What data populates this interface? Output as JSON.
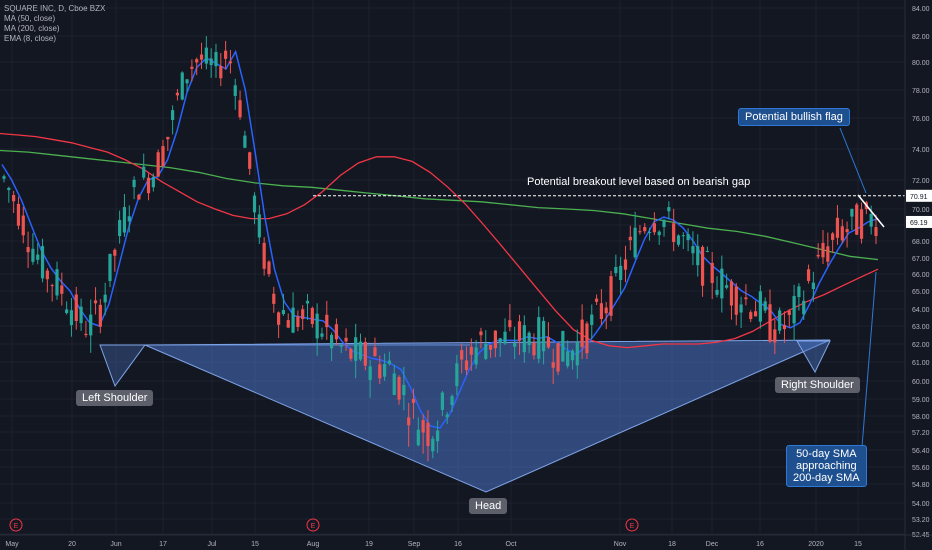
{
  "legend": {
    "symbol": "SQUARE INC, D, Cboe BZX",
    "ma50": "MA (50, close)",
    "ma200": "MA (200, close)",
    "ema8": "EMA (8, close)"
  },
  "annotations": {
    "breakout": "Potential breakout level based on bearish gap",
    "flag": "Potential bullish flag",
    "left_shoulder": "Left Shoulder",
    "head": "Head",
    "right_shoulder": "Right Shoulder",
    "sma_line1": "50-day SMA",
    "sma_line2": "approaching",
    "sma_line3": "200-day SMA"
  },
  "colors": {
    "background": "#131722",
    "up": "#26a69a",
    "down": "#ef5350",
    "ma50": "#f23645",
    "ma200": "#4caf50",
    "ema8": "#2962ff",
    "pattern_fill": "#4a73c2",
    "breakout_line": "#ffffff"
  },
  "chart_data": {
    "type": "candlestick",
    "y_ticks": [
      "84.00",
      "82.00",
      "80.00",
      "78.00",
      "76.00",
      "74.00",
      "72.00",
      "70.00",
      "69.00",
      "68.00",
      "67.00",
      "66.00",
      "65.00",
      "64.00",
      "63.00",
      "62.00",
      "61.00",
      "60.00",
      "59.00",
      "58.00",
      "57.20",
      "56.40",
      "55.60",
      "54.80",
      "54.00",
      "53.20",
      "52.45"
    ],
    "x_ticks": [
      "May",
      "20",
      "Jun",
      "17",
      "Jul",
      "15",
      "Aug",
      "19",
      "Sep",
      "16",
      "Oct",
      "Nov",
      "18",
      "Dec",
      "16",
      "2020",
      "15"
    ],
    "price_labels": [
      "70.91",
      "69.19"
    ],
    "breakout_level": 70.91,
    "last_price": 69.19,
    "earnings_markers": [
      "E",
      "E",
      "E"
    ],
    "ohlc_count": 182,
    "ma50": [
      75.0,
      74.9,
      74.8,
      74.6,
      74.4,
      74.1,
      73.8,
      73.3,
      72.7,
      71.9,
      71.2,
      70.5,
      70.0,
      69.6,
      69.4,
      69.4,
      69.7,
      70.3,
      71.2,
      72.3,
      73.1,
      73.5,
      73.5,
      73.2,
      72.5,
      71.5,
      70.3,
      69.0,
      67.7,
      66.4,
      65.1,
      63.9,
      62.8,
      62.2,
      61.9,
      61.8,
      61.9,
      62.0,
      62.0,
      62.0,
      62.1,
      62.3,
      62.7,
      63.3,
      63.9,
      64.4,
      64.8,
      65.3,
      65.8,
      66.3
    ],
    "ma200": [
      73.9,
      73.8,
      73.6,
      73.4,
      73.2,
      73.0,
      72.8,
      72.5,
      72.1,
      71.8,
      71.6,
      71.5,
      71.3,
      71.1,
      70.9,
      70.7,
      70.6,
      70.5,
      70.3,
      70.1,
      70.0,
      69.9,
      69.7,
      69.4,
      69.1,
      68.8,
      68.6,
      68.3,
      67.9,
      67.5,
      67.1,
      66.9
    ],
    "ema8": [
      73.0,
      72.0,
      70.6,
      69.0,
      67.5,
      66.4,
      65.6,
      65.0,
      64.0,
      63.2,
      63.0,
      64.3,
      66.5,
      68.8,
      70.7,
      72.0,
      72.2,
      73.3,
      75.2,
      77.8,
      79.6,
      80.3,
      79.9,
      79.5,
      80.8,
      78.0,
      73.8,
      69.5,
      66.3,
      64.4,
      63.6,
      63.5,
      63.4,
      63.3,
      62.8,
      62.1,
      61.6,
      61.4,
      61.2,
      61.1,
      60.9,
      60.6,
      59.6,
      58.3,
      57.5,
      57.4,
      58.1,
      59.4,
      60.6,
      61.5,
      62.0,
      62.2,
      62.2,
      62.2,
      62.4,
      62.3,
      62.4,
      62.1,
      61.7,
      61.4,
      61.9,
      62.6,
      63.4,
      64.3,
      65.2,
      66.7,
      68.1,
      69.2,
      69.5,
      69.3,
      68.8,
      68.0,
      67.1,
      66.5,
      66.0,
      65.5,
      65.0,
      64.7,
      64.3,
      63.9,
      63.1,
      62.9,
      63.2,
      64.3,
      65.5,
      66.6,
      67.6,
      68.5,
      68.8,
      69.2,
      69.4
    ]
  }
}
